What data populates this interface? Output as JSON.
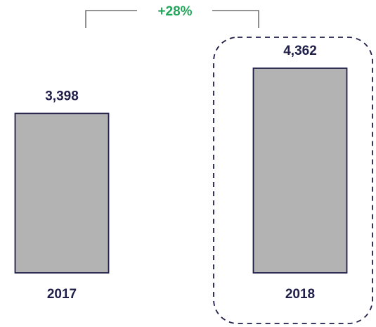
{
  "chart_data": {
    "type": "bar",
    "categories": [
      "2017",
      "2018"
    ],
    "values": [
      3398,
      4362
    ],
    "value_labels": [
      "3,398",
      "4,362"
    ],
    "color": "#b3b3b3",
    "annotation": "+28%"
  }
}
